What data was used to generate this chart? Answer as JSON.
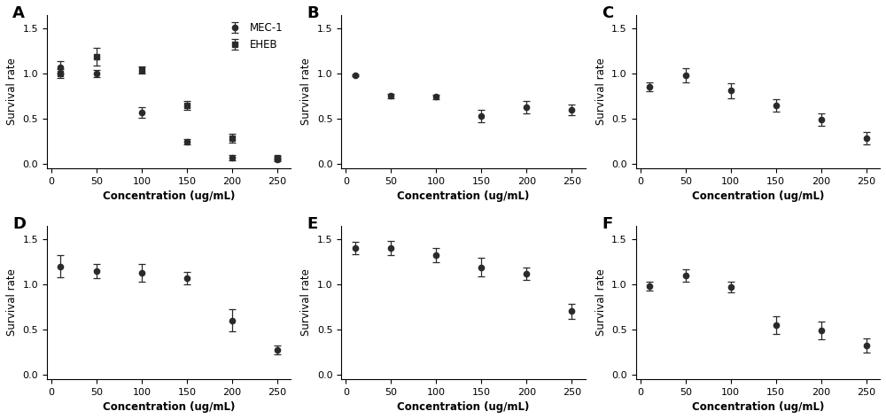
{
  "subplots": [
    {
      "label": "A",
      "series": [
        {
          "name": "MEC-1",
          "marker": "o",
          "x": [
            10,
            50,
            100,
            150,
            200,
            250
          ],
          "y": [
            1.07,
            1.0,
            0.57,
            0.24,
            0.07,
            0.05
          ],
          "yerr": [
            0.07,
            0.04,
            0.06,
            0.03,
            0.03,
            0.02
          ],
          "p0": [
            1.07,
            0.03,
            90,
            3.0
          ]
        },
        {
          "name": "EHEB",
          "marker": "s",
          "x": [
            10,
            50,
            100,
            150,
            200,
            250
          ],
          "y": [
            1.0,
            1.19,
            1.04,
            0.65,
            0.28,
            0.07
          ],
          "yerr": [
            0.05,
            0.1,
            0.04,
            0.05,
            0.05,
            0.02
          ],
          "p0": [
            1.19,
            0.05,
            160,
            3.0
          ]
        }
      ],
      "ylim": [
        -0.05,
        1.65
      ],
      "yticks": [
        0.0,
        0.5,
        1.0,
        1.5
      ],
      "show_legend": true
    },
    {
      "label": "B",
      "series": [
        {
          "name": "",
          "marker": "o",
          "x": [
            10,
            50,
            100,
            150,
            200,
            250
          ],
          "y": [
            0.98,
            0.75,
            0.74,
            0.53,
            0.63,
            0.6
          ],
          "yerr": [
            0.01,
            0.02,
            0.02,
            0.07,
            0.07,
            0.06
          ],
          "p0": [
            0.98,
            0.58,
            35,
            8.0
          ]
        }
      ],
      "ylim": [
        -0.05,
        1.65
      ],
      "yticks": [
        0.0,
        0.5,
        1.0,
        1.5
      ],
      "show_legend": false
    },
    {
      "label": "C",
      "series": [
        {
          "name": "",
          "marker": "o",
          "x": [
            10,
            50,
            100,
            150,
            200,
            250
          ],
          "y": [
            0.85,
            0.98,
            0.81,
            0.65,
            0.49,
            0.28
          ],
          "yerr": [
            0.05,
            0.08,
            0.08,
            0.07,
            0.07,
            0.07
          ],
          "p0": [
            0.98,
            0.1,
            220,
            2.5
          ]
        }
      ],
      "ylim": [
        -0.05,
        1.65
      ],
      "yticks": [
        0.0,
        0.5,
        1.0,
        1.5
      ],
      "show_legend": false
    },
    {
      "label": "D",
      "series": [
        {
          "name": "",
          "marker": "o",
          "x": [
            10,
            50,
            100,
            150,
            200,
            250
          ],
          "y": [
            1.2,
            1.15,
            1.13,
            1.07,
            0.6,
            0.27
          ],
          "yerr": [
            0.12,
            0.08,
            0.1,
            0.07,
            0.12,
            0.05
          ],
          "p0": [
            1.18,
            0.25,
            190,
            15.0
          ]
        }
      ],
      "ylim": [
        -0.05,
        1.65
      ],
      "yticks": [
        0.0,
        0.5,
        1.0,
        1.5
      ],
      "show_legend": false
    },
    {
      "label": "E",
      "series": [
        {
          "name": "",
          "marker": "o",
          "x": [
            10,
            50,
            100,
            150,
            200,
            250
          ],
          "y": [
            1.4,
            1.4,
            1.32,
            1.19,
            1.12,
            0.7
          ],
          "yerr": [
            0.07,
            0.08,
            0.08,
            0.1,
            0.07,
            0.08
          ],
          "p0": [
            1.35,
            0.68,
            215,
            12.0
          ]
        }
      ],
      "ylim": [
        -0.05,
        1.65
      ],
      "yticks": [
        0.0,
        0.5,
        1.0,
        1.5
      ],
      "show_legend": false
    },
    {
      "label": "F",
      "series": [
        {
          "name": "",
          "marker": "o",
          "x": [
            10,
            50,
            100,
            150,
            200,
            250
          ],
          "y": [
            0.98,
            1.1,
            0.97,
            0.55,
            0.49,
            0.32
          ],
          "yerr": [
            0.05,
            0.07,
            0.06,
            0.1,
            0.1,
            0.08
          ],
          "p0": [
            1.05,
            0.28,
            130,
            4.0
          ]
        }
      ],
      "ylim": [
        -0.05,
        1.65
      ],
      "yticks": [
        0.0,
        0.5,
        1.0,
        1.5
      ],
      "show_legend": false
    }
  ],
  "xlabel": "Concentration (ug/mL)",
  "ylabel": "Survival rate",
  "line_color": "#2a2a2a",
  "marker_color": "#2a2a2a",
  "marker_size": 4.5,
  "capsize": 3,
  "background_color": "#ffffff",
  "xticks": [
    0,
    50,
    100,
    150,
    200,
    250
  ]
}
